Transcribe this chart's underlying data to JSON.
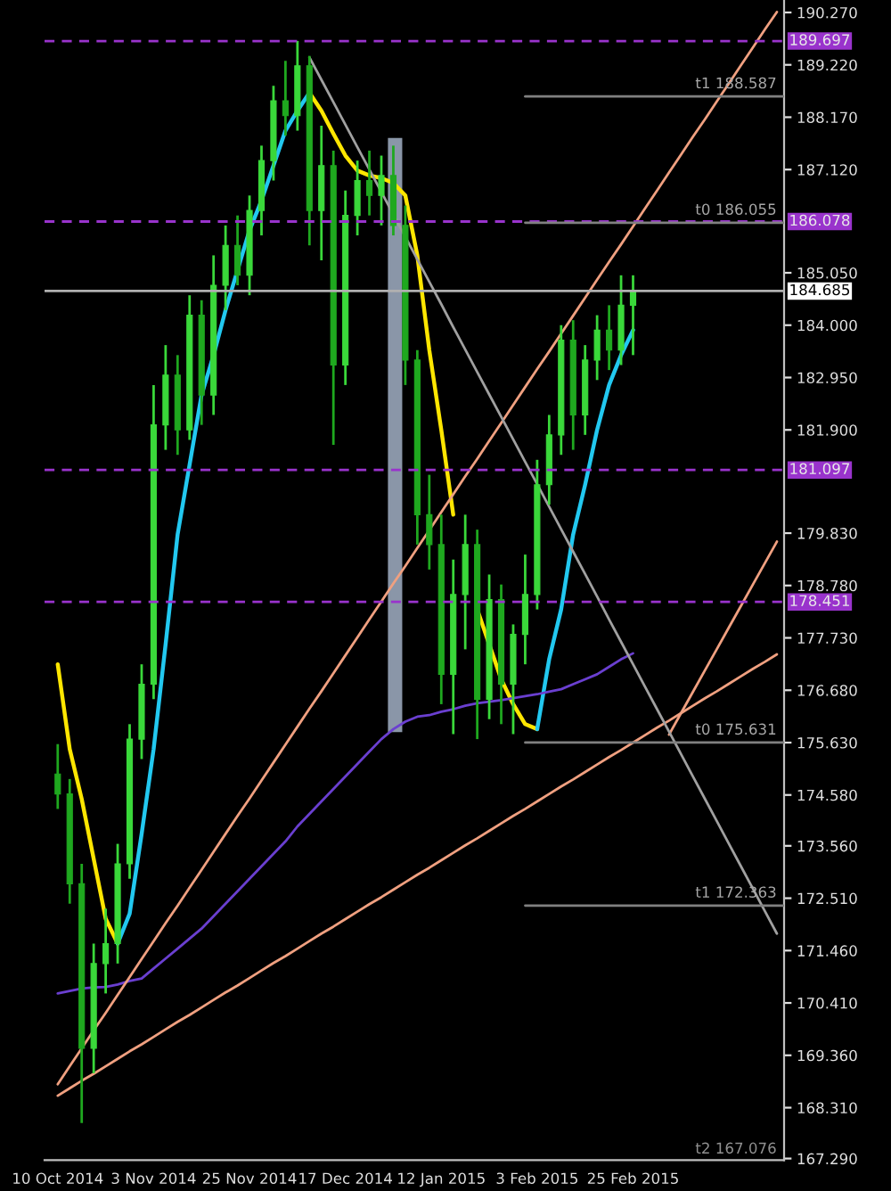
{
  "chart_data": {
    "type": "candlestick",
    "colors": [
      "#1fa81f",
      "#1fa81f",
      "#1fa81f",
      "#3ad83a",
      "#3ad83a",
      "#3ad83a",
      "#3ad83a",
      "#3ad83a",
      "#3ad83a",
      "#3ad83a",
      "#1fa81f",
      "#3ad83a",
      "#1fa81f",
      "#3ad83a",
      "#3ad83a",
      "#1fa81f",
      "#3ad83a",
      "#3ad83a",
      "#3ad83a",
      "#1fa81f",
      "#3ad83a",
      "#1fa81f",
      "#3ad83a",
      "#1fa81f",
      "#3ad83a",
      "#3ad83a",
      "#1fa81f",
      "#3ad83a",
      "#1fa81f",
      "#1fa81f",
      "#1fa81f",
      "#1fa81f",
      "#1fa81f",
      "#3ad83a",
      "#3ad83a",
      "#1fa81f",
      "#3ad83a",
      "#1fa81f",
      "#3ad83a",
      "#3ad83a",
      "#3ad83a",
      "#3ad83a",
      "#3ad83a",
      "#1fa81f",
      "#3ad83a",
      "#3ad83a",
      "#1fa81f",
      "#3ad83a",
      "#3ad83a",
      null,
      null,
      null,
      null,
      null,
      null,
      null,
      null,
      null,
      null,
      null,
      null
    ],
    "categories": [
      "10 Oct 2014",
      null,
      null,
      null,
      null,
      null,
      null,
      null,
      "3 Nov 2014",
      null,
      null,
      null,
      null,
      null,
      null,
      null,
      "25 Nov 2014",
      null,
      null,
      null,
      null,
      null,
      null,
      null,
      "17 Dec 2014",
      null,
      null,
      null,
      null,
      null,
      null,
      null,
      "12 Jan 2015",
      null,
      null,
      null,
      null,
      null,
      null,
      null,
      "3 Feb 2015",
      null,
      null,
      null,
      null,
      null,
      null,
      null,
      "25 Feb 2015",
      null,
      null,
      null,
      null,
      null,
      null,
      null,
      null,
      null,
      null,
      null,
      null
    ],
    "ohlc": [
      [
        175.0,
        175.6,
        174.3,
        174.6
      ],
      [
        174.6,
        174.9,
        172.4,
        172.8
      ],
      [
        172.8,
        173.2,
        168.0,
        169.5
      ],
      [
        169.5,
        171.6,
        169.0,
        171.2
      ],
      [
        171.2,
        172.3,
        170.6,
        171.6
      ],
      [
        171.6,
        173.6,
        171.2,
        173.2
      ],
      [
        173.2,
        176.0,
        172.9,
        175.7
      ],
      [
        175.7,
        177.2,
        175.3,
        176.8
      ],
      [
        176.8,
        182.8,
        176.5,
        182.0
      ],
      [
        182.0,
        183.6,
        181.5,
        183.0
      ],
      [
        183.0,
        183.4,
        181.4,
        181.9
      ],
      [
        181.9,
        184.6,
        181.7,
        184.2
      ],
      [
        184.2,
        184.5,
        182.0,
        182.6
      ],
      [
        182.6,
        185.4,
        182.2,
        184.8
      ],
      [
        184.8,
        186.0,
        184.3,
        185.6
      ],
      [
        185.6,
        186.2,
        184.8,
        185.0
      ],
      [
        185.0,
        186.6,
        184.6,
        186.3
      ],
      [
        186.3,
        187.6,
        185.8,
        187.3
      ],
      [
        187.3,
        188.8,
        186.9,
        188.5
      ],
      [
        188.5,
        189.3,
        187.8,
        188.2
      ],
      [
        188.2,
        189.7,
        187.9,
        189.2
      ],
      [
        189.2,
        189.4,
        185.6,
        186.3
      ],
      [
        186.3,
        188.0,
        185.3,
        187.2
      ],
      [
        187.2,
        187.5,
        181.6,
        183.2
      ],
      [
        183.2,
        186.7,
        182.8,
        186.2
      ],
      [
        186.2,
        187.3,
        185.8,
        186.9
      ],
      [
        186.9,
        187.5,
        186.2,
        186.6
      ],
      [
        186.6,
        187.4,
        186.0,
        187.0
      ],
      [
        187.0,
        187.6,
        185.8,
        186.0
      ],
      [
        186.0,
        186.4,
        182.8,
        183.3
      ],
      [
        183.3,
        183.5,
        179.6,
        180.2
      ],
      [
        180.2,
        181.0,
        179.1,
        179.6
      ],
      [
        179.6,
        180.2,
        176.4,
        177.0
      ],
      [
        177.0,
        179.3,
        175.8,
        178.6
      ],
      [
        178.6,
        180.2,
        177.5,
        179.6
      ],
      [
        179.6,
        179.9,
        175.7,
        176.5
      ],
      [
        176.5,
        179.0,
        176.1,
        178.5
      ],
      [
        178.5,
        178.8,
        176.0,
        176.8
      ],
      [
        176.8,
        178.0,
        175.8,
        177.8
      ],
      [
        177.8,
        179.4,
        177.2,
        178.6
      ],
      [
        178.6,
        181.3,
        178.3,
        180.8
      ],
      [
        180.8,
        182.2,
        180.4,
        181.8
      ],
      [
        181.8,
        184.0,
        181.4,
        183.7
      ],
      [
        183.7,
        184.1,
        181.5,
        182.2
      ],
      [
        182.2,
        183.6,
        181.8,
        183.3
      ],
      [
        183.3,
        184.2,
        182.9,
        183.9
      ],
      [
        183.9,
        184.4,
        183.1,
        183.5
      ],
      [
        183.5,
        185.0,
        183.2,
        184.4
      ],
      [
        184.4,
        185.0,
        183.4,
        184.685
      ],
      null,
      null,
      null,
      null,
      null,
      null,
      null,
      null,
      null,
      null,
      null,
      null
    ],
    "series": [
      {
        "type": "line",
        "color": "#ffe600",
        "values": [
          177.2,
          175.5,
          174.5,
          173.3,
          172.1,
          171.6,
          null,
          null,
          null,
          null,
          null,
          null,
          null,
          null,
          null,
          null,
          null,
          null,
          null,
          null,
          null,
          188.66,
          188.3,
          187.84,
          187.4,
          187.1,
          187.0,
          186.95,
          186.85,
          186.6,
          185.4,
          183.5,
          181.9,
          180.2,
          null,
          178.3,
          177.6,
          176.9,
          176.4,
          176.0,
          175.9,
          null,
          null,
          null,
          null,
          null,
          null,
          null,
          null,
          null,
          null,
          null,
          null,
          null,
          null,
          null,
          null,
          null,
          null,
          null,
          null
        ]
      },
      {
        "type": "line",
        "color": "#22c8f0",
        "values": [
          null,
          null,
          null,
          null,
          null,
          171.6,
          172.2,
          173.8,
          175.5,
          177.6,
          179.8,
          181.2,
          182.6,
          183.4,
          184.3,
          185.1,
          185.9,
          186.5,
          187.2,
          187.9,
          188.3,
          188.66,
          null,
          null,
          null,
          null,
          null,
          null,
          null,
          null,
          null,
          null,
          null,
          null,
          null,
          null,
          null,
          null,
          null,
          null,
          175.9,
          177.3,
          178.3,
          179.8,
          180.8,
          181.9,
          182.8,
          183.4,
          183.9,
          null,
          null,
          null,
          null,
          null,
          null,
          null,
          null,
          null,
          null,
          null,
          null
        ]
      },
      {
        "type": "line",
        "color": "#6a3fd0",
        "values": [
          170.6,
          170.65,
          170.7,
          170.72,
          170.73,
          170.78,
          170.85,
          170.9,
          171.1,
          171.3,
          171.5,
          171.7,
          171.9,
          172.15,
          172.4,
          172.65,
          172.9,
          173.15,
          173.4,
          173.65,
          173.95,
          174.2,
          174.45,
          174.7,
          174.95,
          175.2,
          175.45,
          175.7,
          175.9,
          176.05,
          176.15,
          176.18,
          176.25,
          176.3,
          176.37,
          176.42,
          176.45,
          176.48,
          176.52,
          176.56,
          176.6,
          176.65,
          176.7,
          176.8,
          176.9,
          177.0,
          177.15,
          177.3,
          177.42,
          null,
          null,
          null,
          null,
          null,
          null,
          null,
          null,
          null,
          null,
          null,
          null
        ]
      },
      {
        "type": "line",
        "color": "#f0a080",
        "values": [
          168.55,
          168.7,
          168.85,
          168.99,
          169.14,
          169.29,
          169.44,
          169.58,
          169.73,
          169.88,
          170.03,
          170.17,
          170.32,
          170.47,
          170.62,
          170.76,
          170.91,
          171.06,
          171.21,
          171.35,
          171.5,
          171.65,
          171.8,
          171.94,
          172.09,
          172.24,
          172.39,
          172.53,
          172.68,
          172.83,
          172.98,
          173.12,
          173.27,
          173.42,
          173.57,
          173.71,
          173.86,
          174.01,
          174.16,
          174.3,
          174.45,
          174.6,
          174.75,
          174.89,
          175.04,
          175.19,
          175.34,
          175.48,
          175.63,
          175.78,
          175.93,
          176.07,
          176.22,
          176.37,
          176.52,
          176.66,
          176.81,
          176.96,
          177.11,
          177.25,
          177.4
        ]
      },
      {
        "type": "line",
        "color": "#f0a080",
        "values": [
          168.78,
          169.14,
          169.5,
          169.86,
          170.21,
          170.57,
          170.93,
          171.29,
          171.65,
          172.01,
          172.36,
          172.72,
          173.08,
          173.44,
          173.8,
          174.16,
          174.51,
          174.87,
          175.23,
          175.59,
          175.95,
          176.31,
          176.66,
          177.02,
          177.38,
          177.74,
          178.1,
          178.46,
          178.82,
          179.17,
          179.53,
          179.89,
          180.25,
          180.61,
          180.97,
          181.32,
          181.68,
          182.04,
          182.4,
          182.76,
          183.12,
          183.47,
          183.83,
          184.19,
          184.55,
          184.91,
          185.27,
          185.62,
          185.98,
          186.34,
          186.7,
          187.06,
          187.42,
          187.78,
          188.13,
          188.49,
          188.85,
          189.21,
          189.57,
          189.93,
          190.28
        ]
      },
      {
        "type": "line",
        "color": "#f0a080",
        "values": [
          null,
          null,
          null,
          null,
          null,
          null,
          null,
          null,
          null,
          null,
          null,
          null,
          null,
          null,
          null,
          null,
          null,
          null,
          null,
          null,
          null,
          null,
          null,
          null,
          null,
          null,
          null,
          null,
          null,
          null,
          null,
          null,
          null,
          null,
          null,
          null,
          null,
          null,
          null,
          null,
          null,
          null,
          null,
          null,
          null,
          null,
          null,
          null,
          null,
          null,
          null,
          175.79,
          176.22,
          176.65,
          177.08,
          177.51,
          177.94,
          178.37,
          178.8,
          179.23,
          179.66
        ]
      },
      {
        "type": "line",
        "color": "#a0a0a0",
        "values": [
          null,
          null,
          null,
          null,
          null,
          null,
          null,
          null,
          null,
          null,
          null,
          null,
          null,
          null,
          null,
          null,
          null,
          null,
          null,
          null,
          null,
          189.37,
          188.92,
          188.47,
          188.02,
          187.57,
          187.12,
          186.67,
          186.22,
          185.77,
          185.32,
          184.87,
          184.42,
          183.96,
          183.51,
          183.06,
          182.61,
          182.16,
          181.71,
          181.26,
          180.81,
          180.36,
          179.91,
          179.46,
          179.01,
          178.56,
          178.1,
          177.65,
          177.2,
          176.75,
          176.3,
          175.85,
          175.4,
          174.95,
          174.5,
          174.05,
          173.6,
          173.15,
          172.7,
          172.25,
          171.8
        ]
      }
    ],
    "ref_lines": [
      {
        "axis": "y",
        "value": 189.697,
        "label": "189.697",
        "color": "#9933cc",
        "line_style": "dashed"
      },
      {
        "axis": "y",
        "value": 186.078,
        "label": "186.078",
        "color": "#9933cc",
        "line_style": "dashed"
      },
      {
        "axis": "y",
        "value": 181.097,
        "label": "181.097",
        "color": "#9933cc",
        "line_style": "dashed"
      },
      {
        "axis": "y",
        "value": 178.451,
        "label": "178.451",
        "color": "#9933cc",
        "line_style": "dashed"
      },
      {
        "axis": "y",
        "value": 184.685,
        "label": "184.685",
        "color": "#b0b0b0",
        "line_style": "solid"
      },
      {
        "axis": "y",
        "value": 188.587,
        "label": "t1 188.587",
        "color": "#808080",
        "line_style": "solid"
      },
      {
        "axis": "y",
        "value": 186.055,
        "label": "t0 186.055",
        "color": "#808080",
        "line_style": "solid"
      },
      {
        "axis": "y",
        "value": 175.631,
        "label": "t0 175.631",
        "color": "#808080",
        "line_style": "solid"
      },
      {
        "axis": "y",
        "value": 172.363,
        "label": "t1 172.363",
        "color": "#808080",
        "line_style": "solid"
      }
    ],
    "annotations": [
      "t2 167.076"
    ],
    "ylim": [
      167.26,
      190.52
    ],
    "yticks": [
      {
        "value": 190.27,
        "label": "190.270"
      },
      {
        "value": 189.22,
        "label": "189.220"
      },
      {
        "value": 188.17,
        "label": "188.170"
      },
      {
        "value": 187.12,
        "label": "187.120"
      },
      {
        "value": 185.05,
        "label": "185.050"
      },
      {
        "value": 184.0,
        "label": "184.000"
      },
      {
        "value": 182.95,
        "label": "182.950"
      },
      {
        "value": 181.9,
        "label": "181.900"
      },
      {
        "value": 179.83,
        "label": "179.830"
      },
      {
        "value": 178.78,
        "label": "178.780"
      },
      {
        "value": 177.73,
        "label": "177.730"
      },
      {
        "value": 176.68,
        "label": "176.680"
      },
      {
        "value": 175.63,
        "label": "175.630"
      },
      {
        "value": 174.58,
        "label": "174.580"
      },
      {
        "value": 173.56,
        "label": "173.560"
      },
      {
        "value": 172.51,
        "label": "172.510"
      },
      {
        "value": 171.46,
        "label": "171.460"
      },
      {
        "value": 170.41,
        "label": "170.410"
      },
      {
        "value": 169.36,
        "label": "169.360"
      },
      {
        "value": 168.31,
        "label": "168.310"
      },
      {
        "value": 167.29,
        "label": "167.290"
      }
    ],
    "grid": false,
    "legend": false
  }
}
